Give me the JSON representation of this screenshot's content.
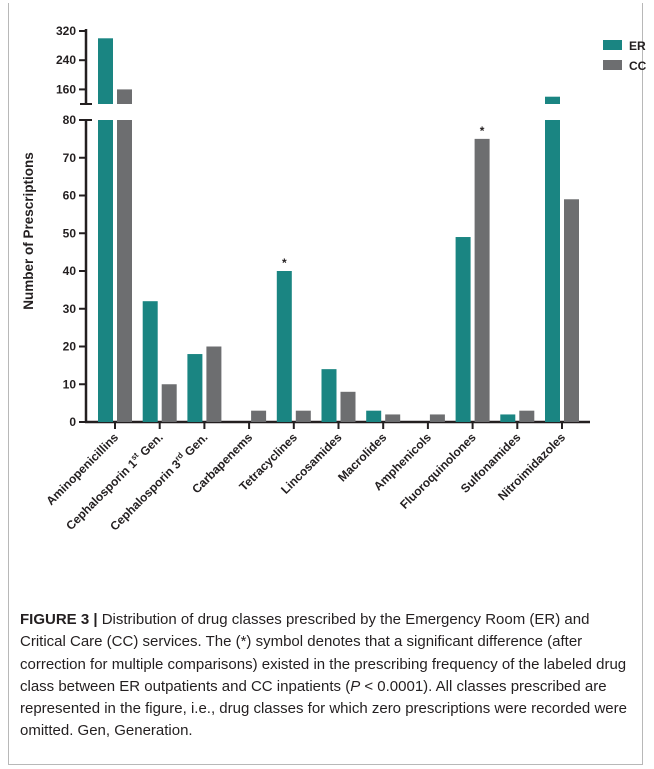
{
  "chart_data": {
    "type": "bar",
    "ylabel": "Number of Prescriptions",
    "y_axis_break": {
      "lower_range": [
        0,
        80
      ],
      "upper_range": [
        120,
        320
      ]
    },
    "y_ticks_lower": [
      "0",
      "10",
      "20",
      "30",
      "40",
      "50",
      "60",
      "70",
      "80"
    ],
    "y_ticks_upper": [
      "160",
      "240",
      "320"
    ],
    "legend_position": "top-right",
    "categories": [
      {
        "label": "Aminopenicillins"
      },
      {
        "label": "Cephalosporin 1",
        "sup": "st",
        "suffix": " Gen."
      },
      {
        "label": "Cephalosporin 3",
        "sup": "rd",
        "suffix": " Gen."
      },
      {
        "label": "Carbapenems"
      },
      {
        "label": "Tetracyclines"
      },
      {
        "label": "Lincosamides"
      },
      {
        "label": "Macrolides"
      },
      {
        "label": "Amphenicols"
      },
      {
        "label": "Fluoroquinolones"
      },
      {
        "label": "Sulfonamides"
      },
      {
        "label": "Nitroimidazoles"
      }
    ],
    "series": [
      {
        "name": "ER",
        "color": "#1a8582",
        "values": [
          300,
          32,
          18,
          0,
          40,
          14,
          3,
          0,
          49,
          2,
          140
        ]
      },
      {
        "name": "CC",
        "color": "#6d6e70",
        "values": [
          160,
          10,
          20,
          3,
          3,
          8,
          2,
          2,
          75,
          3,
          59
        ]
      }
    ],
    "significance_marks": [
      {
        "category_index": 4,
        "series": "ER",
        "symbol": "*"
      },
      {
        "category_index": 8,
        "series": "CC",
        "symbol": "*"
      }
    ]
  },
  "caption": {
    "label": "FIGURE 3 |",
    "text_1": " Distribution of drug classes prescribed by the Emergency Room (ER) and Critical Care (CC) services. The (*) symbol denotes that a significant difference (after correction for multiple comparisons) existed in the prescribing frequency of the labeled drug class between ER outpatients and CC inpatients (",
    "p_symbol": "P",
    "text_2": " < 0.0001). All classes prescribed are represented in the figure, i.e., drug classes for which zero prescriptions were recorded were omitted. Gen, Generation."
  }
}
